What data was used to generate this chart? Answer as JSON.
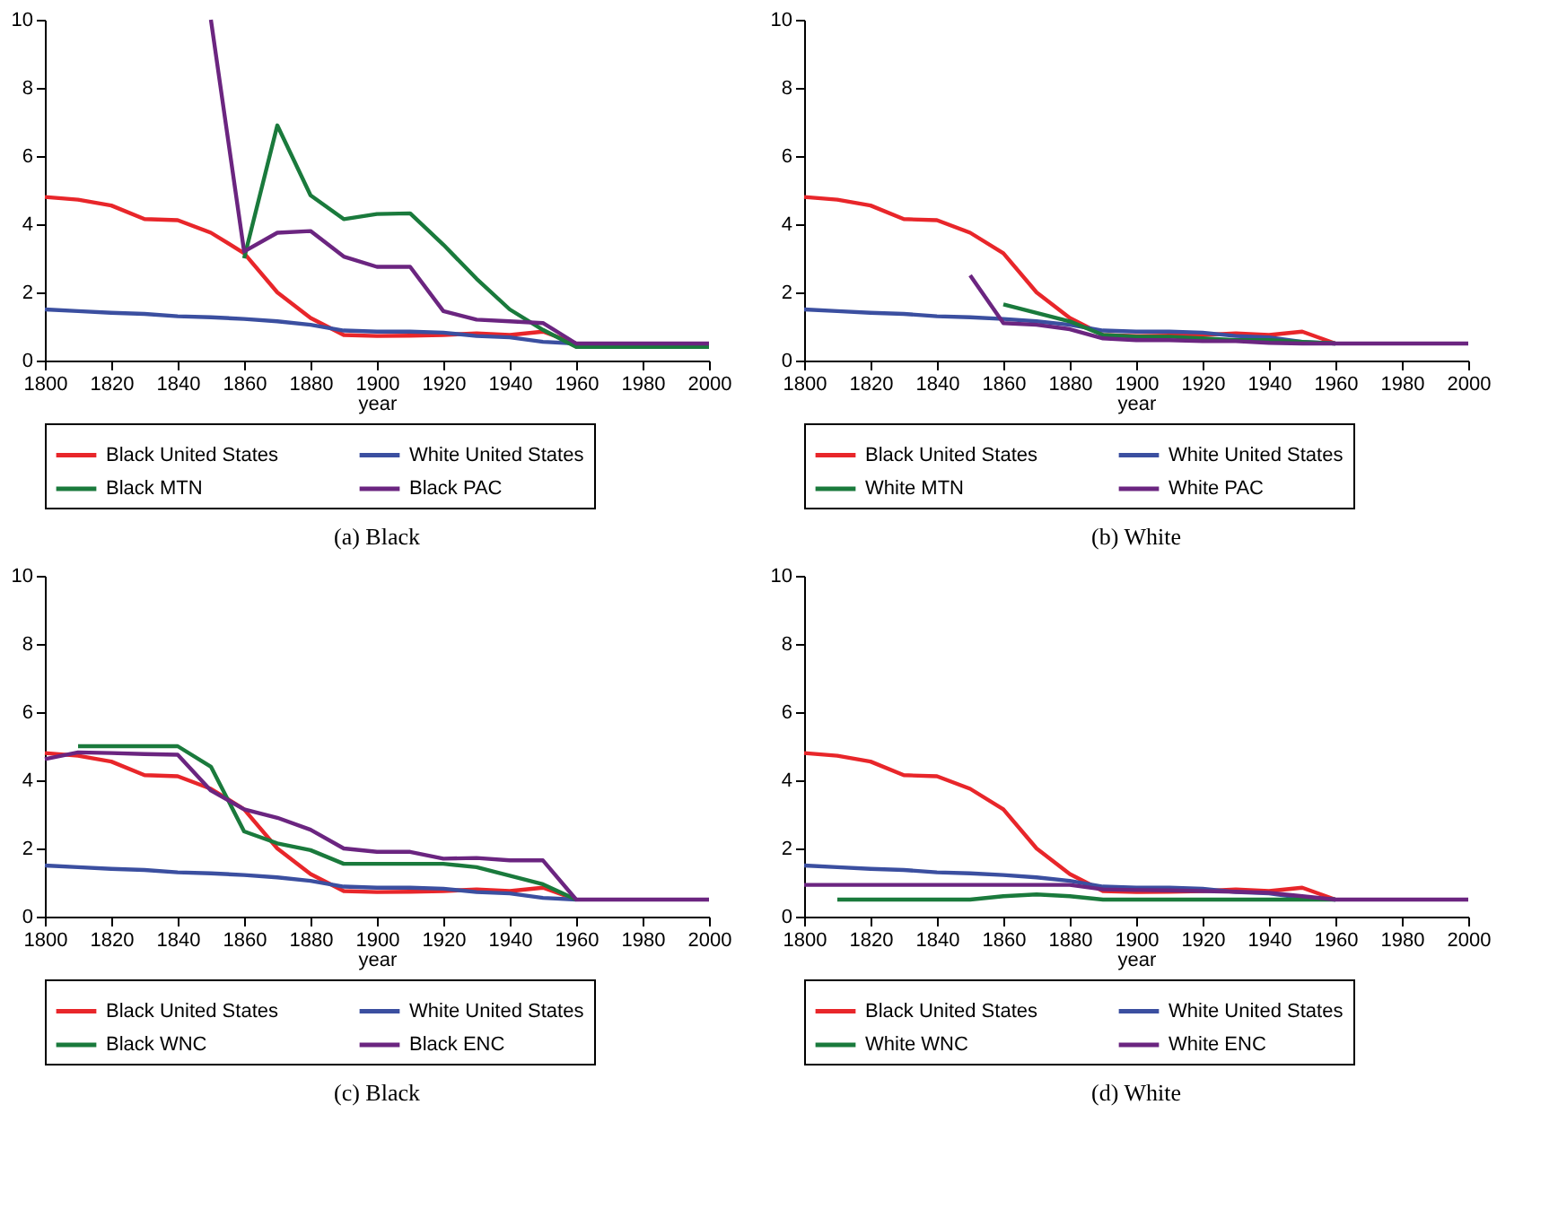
{
  "chart_data": [
    {
      "type": "line",
      "title": "(a) Black",
      "xlabel": "year",
      "xlim": [
        1800,
        2000
      ],
      "xticks": [
        1800,
        1820,
        1840,
        1860,
        1880,
        1900,
        1920,
        1940,
        1960,
        1980,
        2000
      ],
      "ylim": [
        0,
        10
      ],
      "yticks": [
        0,
        2,
        4,
        6,
        8,
        10
      ],
      "grid": false,
      "legend": "bottom",
      "x": [
        1800,
        1810,
        1820,
        1830,
        1840,
        1850,
        1860,
        1870,
        1880,
        1890,
        1900,
        1910,
        1920,
        1930,
        1940,
        1950,
        1960,
        1970,
        1980,
        1990,
        2000
      ],
      "series": [
        {
          "name": "Black United States",
          "color": "#e8262a",
          "values": [
            4.8,
            4.72,
            4.55,
            4.15,
            4.12,
            3.75,
            3.15,
            2.0,
            1.25,
            0.75,
            0.72,
            0.73,
            0.75,
            0.8,
            0.75,
            0.85,
            0.5,
            null,
            null,
            null,
            null
          ]
        },
        {
          "name": "White United States",
          "color": "#3b4fa0",
          "values": [
            1.5,
            1.45,
            1.4,
            1.37,
            1.3,
            1.27,
            1.22,
            1.15,
            1.05,
            0.88,
            0.85,
            0.85,
            0.82,
            0.72,
            0.68,
            0.55,
            0.5,
            null,
            null,
            null,
            null
          ]
        },
        {
          "name": "Black MTN",
          "color": "#1a7a3c",
          "values": [
            null,
            null,
            null,
            null,
            null,
            null,
            3.0,
            6.9,
            4.85,
            4.15,
            4.3,
            4.32,
            3.4,
            2.4,
            1.5,
            0.9,
            0.4,
            0.4,
            0.4,
            0.4,
            0.4
          ]
        },
        {
          "name": "Black PAC",
          "color": "#6b2580",
          "values": [
            null,
            null,
            null,
            null,
            null,
            10,
            3.2,
            3.75,
            3.8,
            3.05,
            2.75,
            2.75,
            1.45,
            1.2,
            1.15,
            1.1,
            0.5,
            0.5,
            0.5,
            0.5,
            0.5
          ]
        }
      ]
    },
    {
      "type": "line",
      "title": "(b) White",
      "xlabel": "year",
      "xlim": [
        1800,
        2000
      ],
      "xticks": [
        1800,
        1820,
        1840,
        1860,
        1880,
        1900,
        1920,
        1940,
        1960,
        1980,
        2000
      ],
      "ylim": [
        0,
        10
      ],
      "yticks": [
        0,
        2,
        4,
        6,
        8,
        10
      ],
      "grid": false,
      "legend": "bottom",
      "x": [
        1800,
        1810,
        1820,
        1830,
        1840,
        1850,
        1860,
        1870,
        1880,
        1890,
        1900,
        1910,
        1920,
        1930,
        1940,
        1950,
        1960,
        1970,
        1980,
        1990,
        2000
      ],
      "series": [
        {
          "name": "Black United States",
          "color": "#e8262a",
          "values": [
            4.8,
            4.72,
            4.55,
            4.15,
            4.12,
            3.75,
            3.15,
            2.0,
            1.25,
            0.75,
            0.72,
            0.73,
            0.75,
            0.8,
            0.75,
            0.85,
            0.5,
            null,
            null,
            null,
            null
          ]
        },
        {
          "name": "White United States",
          "color": "#3b4fa0",
          "values": [
            1.5,
            1.45,
            1.4,
            1.37,
            1.3,
            1.27,
            1.22,
            1.15,
            1.05,
            0.88,
            0.85,
            0.85,
            0.82,
            0.72,
            0.68,
            0.55,
            0.5,
            null,
            null,
            null,
            null
          ]
        },
        {
          "name": "White MTN",
          "color": "#1a7a3c",
          "values": [
            null,
            null,
            null,
            null,
            null,
            null,
            1.65,
            1.4,
            1.15,
            0.75,
            0.7,
            0.7,
            0.65,
            0.6,
            0.6,
            0.55,
            0.5,
            null,
            null,
            null,
            null
          ]
        },
        {
          "name": "White PAC",
          "color": "#6b2580",
          "values": [
            null,
            null,
            null,
            null,
            null,
            2.5,
            1.1,
            1.05,
            0.92,
            0.65,
            0.6,
            0.6,
            0.57,
            0.57,
            0.52,
            0.5,
            0.5,
            0.5,
            0.5,
            0.5,
            0.5
          ]
        }
      ]
    },
    {
      "type": "line",
      "title": "(c) Black",
      "xlabel": "year",
      "xlim": [
        1800,
        2000
      ],
      "xticks": [
        1800,
        1820,
        1840,
        1860,
        1880,
        1900,
        1920,
        1940,
        1960,
        1980,
        2000
      ],
      "ylim": [
        0,
        10
      ],
      "yticks": [
        0,
        2,
        4,
        6,
        8,
        10
      ],
      "grid": false,
      "legend": "bottom",
      "x": [
        1800,
        1810,
        1820,
        1830,
        1840,
        1850,
        1860,
        1870,
        1880,
        1890,
        1900,
        1910,
        1920,
        1930,
        1940,
        1950,
        1960,
        1970,
        1980,
        1990,
        2000
      ],
      "series": [
        {
          "name": "Black United States",
          "color": "#e8262a",
          "values": [
            4.8,
            4.72,
            4.55,
            4.15,
            4.12,
            3.75,
            3.15,
            2.0,
            1.25,
            0.75,
            0.72,
            0.73,
            0.75,
            0.8,
            0.75,
            0.85,
            0.5,
            null,
            null,
            null,
            null
          ]
        },
        {
          "name": "White United States",
          "color": "#3b4fa0",
          "values": [
            1.5,
            1.45,
            1.4,
            1.37,
            1.3,
            1.27,
            1.22,
            1.15,
            1.05,
            0.88,
            0.85,
            0.85,
            0.82,
            0.72,
            0.68,
            0.55,
            0.5,
            null,
            null,
            null,
            null
          ]
        },
        {
          "name": "Black WNC",
          "color": "#1a7a3c",
          "values": [
            null,
            5.0,
            5.0,
            5.0,
            5.0,
            4.4,
            2.5,
            2.15,
            1.95,
            1.55,
            1.55,
            1.55,
            1.55,
            1.45,
            1.2,
            0.95,
            0.5,
            null,
            null,
            null,
            null
          ]
        },
        {
          "name": "Black ENC",
          "color": "#6b2580",
          "values": [
            4.62,
            4.82,
            4.8,
            4.77,
            4.75,
            3.7,
            3.15,
            2.9,
            2.55,
            2.0,
            1.9,
            1.9,
            1.7,
            1.72,
            1.65,
            1.65,
            0.5,
            0.5,
            0.5,
            0.5,
            0.5
          ]
        }
      ]
    },
    {
      "type": "line",
      "title": "(d) White",
      "xlabel": "year",
      "xlim": [
        1800,
        2000
      ],
      "xticks": [
        1800,
        1820,
        1840,
        1860,
        1880,
        1900,
        1920,
        1940,
        1960,
        1980,
        2000
      ],
      "ylim": [
        0,
        10
      ],
      "yticks": [
        0,
        2,
        4,
        6,
        8,
        10
      ],
      "grid": false,
      "legend": "bottom",
      "x": [
        1800,
        1810,
        1820,
        1830,
        1840,
        1850,
        1860,
        1870,
        1880,
        1890,
        1900,
        1910,
        1920,
        1930,
        1940,
        1950,
        1960,
        1970,
        1980,
        1990,
        2000
      ],
      "series": [
        {
          "name": "Black United States",
          "color": "#e8262a",
          "values": [
            4.8,
            4.72,
            4.55,
            4.15,
            4.12,
            3.75,
            3.15,
            2.0,
            1.25,
            0.75,
            0.72,
            0.73,
            0.75,
            0.8,
            0.75,
            0.85,
            0.5,
            null,
            null,
            null,
            null
          ]
        },
        {
          "name": "White United States",
          "color": "#3b4fa0",
          "values": [
            1.5,
            1.45,
            1.4,
            1.37,
            1.3,
            1.27,
            1.22,
            1.15,
            1.05,
            0.88,
            0.85,
            0.85,
            0.82,
            0.72,
            0.68,
            0.55,
            0.5,
            null,
            null,
            null,
            null
          ]
        },
        {
          "name": "White WNC",
          "color": "#1a7a3c",
          "values": [
            null,
            0.5,
            0.5,
            0.5,
            0.5,
            0.5,
            0.6,
            0.65,
            0.6,
            0.5,
            0.5,
            0.5,
            0.5,
            0.5,
            0.5,
            0.5,
            0.5,
            null,
            null,
            null,
            null
          ]
        },
        {
          "name": "White ENC",
          "color": "#6b2580",
          "values": [
            0.93,
            0.93,
            0.93,
            0.93,
            0.93,
            0.93,
            0.93,
            0.93,
            0.93,
            0.8,
            0.78,
            0.77,
            0.75,
            0.73,
            0.7,
            0.6,
            0.5,
            0.5,
            0.5,
            0.5,
            0.5
          ]
        }
      ]
    }
  ]
}
